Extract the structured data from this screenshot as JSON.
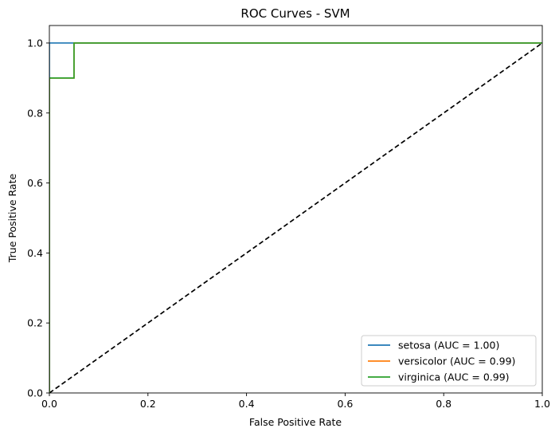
{
  "chart_data": {
    "type": "line",
    "title": "ROC Curves - SVM",
    "xlabel": "False Positive Rate",
    "ylabel": "True Positive Rate",
    "xlim": [
      0.0,
      1.0
    ],
    "ylim": [
      0.0,
      1.05
    ],
    "xticks": [
      0.0,
      0.2,
      0.4,
      0.6,
      0.8,
      1.0
    ],
    "yticks": [
      0.0,
      0.2,
      0.4,
      0.6,
      0.8,
      1.0
    ],
    "xtick_labels": [
      "0.0",
      "0.2",
      "0.4",
      "0.6",
      "0.8",
      "1.0"
    ],
    "ytick_labels": [
      "0.0",
      "0.2",
      "0.4",
      "0.6",
      "0.8",
      "1.0"
    ],
    "grid": false,
    "legend_position": "lower-right",
    "series": [
      {
        "name": "setosa (AUC = 1.00)",
        "color": "#1f77b4",
        "style": "solid",
        "x": [
          0.0,
          0.0,
          1.0
        ],
        "y": [
          0.0,
          1.0,
          1.0
        ]
      },
      {
        "name": "versicolor (AUC = 0.99)",
        "color": "#ff7f0e",
        "style": "solid",
        "x": [
          0.0,
          0.0,
          0.05,
          0.05,
          1.0
        ],
        "y": [
          0.0,
          0.9,
          0.9,
          1.0,
          1.0
        ]
      },
      {
        "name": "virginica (AUC = 0.99)",
        "color": "#2ca02c",
        "style": "solid",
        "x": [
          0.0,
          0.0,
          0.05,
          0.05,
          1.0
        ],
        "y": [
          0.0,
          0.9,
          0.9,
          1.0,
          1.0
        ]
      }
    ],
    "reference_line": {
      "color": "#000000",
      "style": "dashed",
      "x": [
        0.0,
        1.0
      ],
      "y": [
        0.0,
        1.0
      ]
    }
  }
}
